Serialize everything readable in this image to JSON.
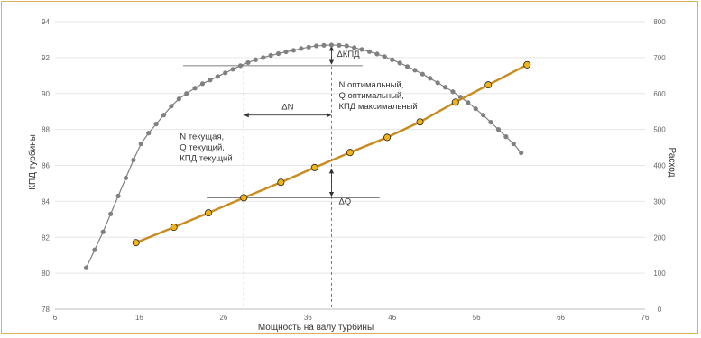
{
  "chart_data": {
    "type": "line",
    "title": "",
    "xlabel": "Мощность на валу турбины",
    "ylabel_left": "КПД турбины",
    "ylabel_right": "Расход",
    "xlim": [
      6,
      76
    ],
    "ylim_left": [
      78,
      94
    ],
    "ylim_right": [
      0,
      800
    ],
    "x_ticks": [
      "6",
      "16",
      "26",
      "36",
      "46",
      "56",
      "66",
      "76"
    ],
    "y_ticks_left": [
      "78",
      "80",
      "82",
      "84",
      "86",
      "88",
      "90",
      "92",
      "94"
    ],
    "y_ticks_right": [
      "0",
      "100",
      "200",
      "300",
      "400",
      "500",
      "600",
      "700",
      "800"
    ],
    "grid": "horizontal",
    "colors": {
      "efficiency": "#808080",
      "flow_line": "#c98a1e",
      "flow_marker": "#f2b316",
      "annotation": "#333333"
    },
    "series": [
      {
        "axis": "left",
        "marker": "dot",
        "points": [
          [
            9.7,
            80.3
          ],
          [
            10.7,
            81.3
          ],
          [
            11.7,
            82.3
          ],
          [
            12.6,
            83.3
          ],
          [
            13.5,
            84.3
          ],
          [
            14.4,
            85.3
          ],
          [
            15.3,
            86.3
          ],
          [
            16.2,
            87.2
          ],
          [
            17.1,
            87.8
          ],
          [
            18.0,
            88.3
          ],
          [
            18.9,
            88.8
          ],
          [
            19.8,
            89.3
          ],
          [
            20.7,
            89.7
          ],
          [
            21.6,
            90.0
          ],
          [
            22.6,
            90.3
          ],
          [
            23.5,
            90.55
          ],
          [
            24.4,
            90.75
          ],
          [
            25.3,
            90.95
          ],
          [
            26.2,
            91.15
          ],
          [
            27.1,
            91.35
          ],
          [
            28.0,
            91.55
          ],
          [
            28.9,
            91.72
          ],
          [
            29.8,
            91.88
          ],
          [
            30.7,
            92.0
          ],
          [
            31.6,
            92.12
          ],
          [
            32.5,
            92.22
          ],
          [
            33.4,
            92.32
          ],
          [
            34.3,
            92.4
          ],
          [
            35.2,
            92.5
          ],
          [
            36.1,
            92.58
          ],
          [
            37.0,
            92.65
          ],
          [
            37.9,
            92.68
          ],
          [
            38.8,
            92.7
          ],
          [
            39.7,
            92.68
          ],
          [
            40.6,
            92.65
          ],
          [
            41.5,
            92.55
          ],
          [
            42.4,
            92.45
          ],
          [
            43.3,
            92.33
          ],
          [
            44.2,
            92.2
          ],
          [
            45.1,
            92.05
          ],
          [
            46.0,
            91.88
          ],
          [
            46.9,
            91.7
          ],
          [
            47.8,
            91.5
          ],
          [
            48.7,
            91.3
          ],
          [
            49.6,
            91.08
          ],
          [
            50.5,
            90.85
          ],
          [
            51.4,
            90.6
          ],
          [
            52.3,
            90.35
          ],
          [
            53.2,
            90.1
          ],
          [
            54.1,
            89.8
          ],
          [
            55.0,
            89.5
          ],
          [
            55.9,
            89.15
          ],
          [
            56.8,
            88.8
          ],
          [
            57.7,
            88.4
          ],
          [
            58.6,
            88.0
          ],
          [
            59.5,
            87.6
          ],
          [
            60.4,
            87.2
          ],
          [
            61.3,
            86.7
          ]
        ]
      },
      {
        "axis": "right",
        "marker": "circle",
        "points": [
          [
            15.6,
            185
          ],
          [
            20.1,
            228
          ],
          [
            24.2,
            268
          ],
          [
            28.4,
            310
          ],
          [
            32.8,
            353
          ],
          [
            36.8,
            394
          ],
          [
            41.0,
            436
          ],
          [
            45.4,
            478
          ],
          [
            49.3,
            521
          ],
          [
            53.5,
            576
          ],
          [
            57.4,
            624
          ],
          [
            62.0,
            680
          ]
        ]
      }
    ],
    "annotations": {
      "delta_kpd": "ΔКПД",
      "delta_n": "ΔN",
      "delta_q": "ΔQ",
      "current_block": [
        "N текущая,",
        "Q текущий,",
        "КПД текущий"
      ],
      "optimal_block": [
        "N оптимальный,",
        "Q оптимальный,",
        "КПД максимальный"
      ]
    }
  }
}
